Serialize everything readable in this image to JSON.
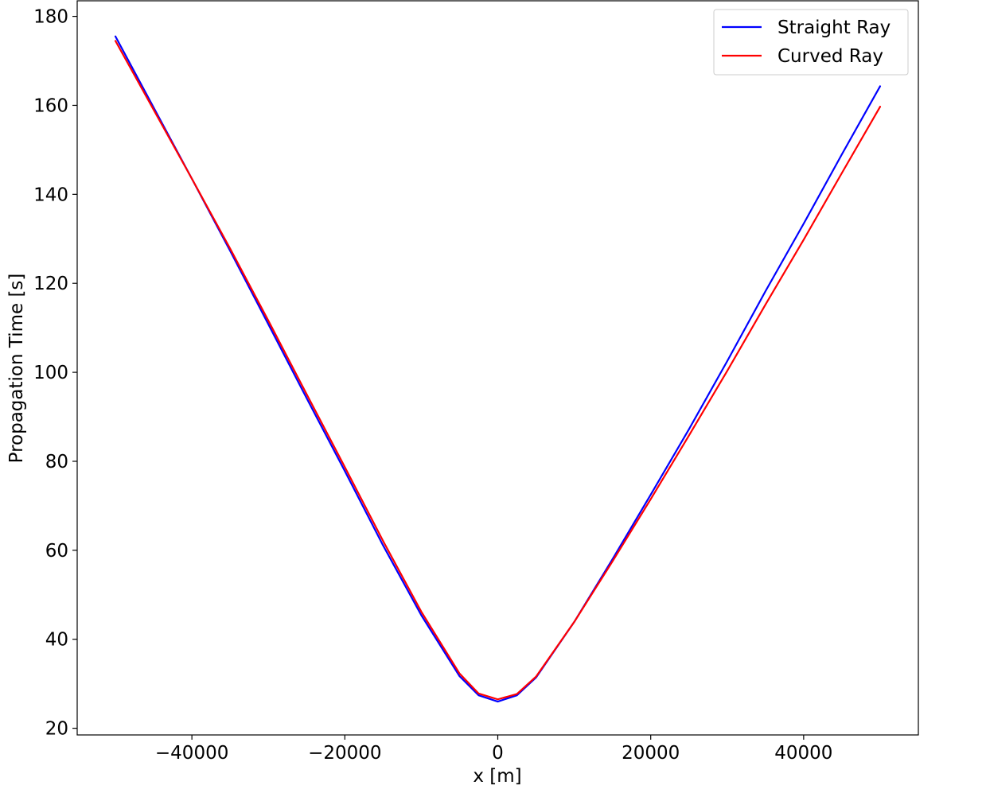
{
  "chart_data": {
    "type": "line",
    "title": "",
    "xlabel": "x [m]",
    "ylabel": "Propagation Time [s]",
    "xlim": [
      -55000,
      55000
    ],
    "ylim": [
      18.5,
      183.5
    ],
    "x_ticks": [
      -40000,
      -20000,
      0,
      20000,
      40000
    ],
    "x_tick_labels": [
      "−40000",
      "−20000",
      "0",
      "20000",
      "40000"
    ],
    "y_ticks": [
      20,
      40,
      60,
      80,
      100,
      120,
      140,
      160,
      180
    ],
    "y_tick_labels": [
      "20",
      "40",
      "60",
      "80",
      "100",
      "120",
      "140",
      "160",
      "180"
    ],
    "grid": false,
    "legend_position": "top-right",
    "series": [
      {
        "name": "Straight Ray",
        "color": "#0000ff",
        "x": [
          -50000,
          -45000,
          -40000,
          -35000,
          -30000,
          -25000,
          -20000,
          -15000,
          -10000,
          -5000,
          -2500,
          0,
          2500,
          5000,
          10000,
          15000,
          20000,
          25000,
          30000,
          35000,
          40000,
          45000,
          50000
        ],
        "y": [
          175.5,
          159.5,
          143.5,
          127.3,
          110.8,
          94.2,
          77.8,
          61.1,
          45.4,
          31.7,
          27.4,
          26.0,
          27.4,
          31.4,
          43.9,
          58.0,
          72.5,
          87.2,
          102.5,
          118.2,
          133.4,
          149.0,
          164.3
        ]
      },
      {
        "name": "Curved Ray",
        "color": "#ff0000",
        "x": [
          -50000,
          -45000,
          -40000,
          -35000,
          -30000,
          -25000,
          -20000,
          -15000,
          -10000,
          -5000,
          -2500,
          0,
          2500,
          5000,
          10000,
          15000,
          20000,
          25000,
          30000,
          35000,
          40000,
          45000,
          50000
        ],
        "y": [
          174.5,
          159.0,
          143.5,
          127.8,
          111.6,
          95.1,
          78.7,
          62.1,
          46.2,
          32.3,
          27.8,
          26.5,
          27.7,
          31.6,
          43.9,
          57.5,
          71.5,
          85.8,
          100.3,
          115.2,
          129.8,
          144.8,
          159.7
        ]
      }
    ]
  }
}
